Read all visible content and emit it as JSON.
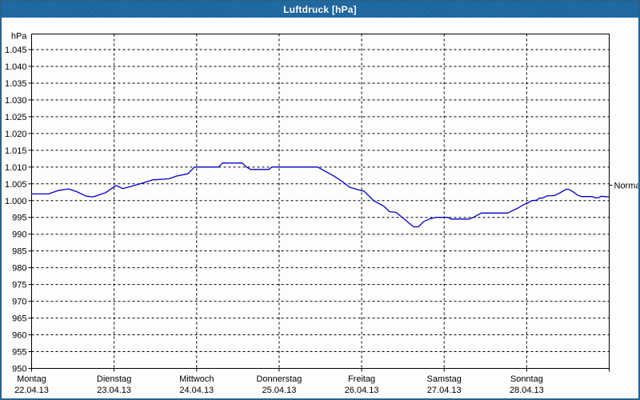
{
  "window": {
    "title": "Luftdruck [hPa]"
  },
  "colors": {
    "titlebar_bg": "#1c69a3",
    "titlebar_text": "#ffffff",
    "frame_border": "#26638b",
    "chart_bg": "#fdfdfb",
    "grid": "#000000",
    "line": "#0000cc",
    "text": "#000000"
  },
  "chart_data": {
    "type": "line",
    "title": "Luftdruck [hPa]",
    "ylabel": "hPa",
    "ylim": [
      950,
      1049.7
    ],
    "ytick_min": 950,
    "ytick_max": 1045,
    "ytick_step": 5,
    "ytick_labels_top_to_bottom": [
      "1.045",
      "1.040",
      "1.035",
      "1.030",
      "1.025",
      "1.020",
      "1.015",
      "1.010",
      "1.005",
      "1.000",
      "995",
      "990",
      "985",
      "980",
      "975",
      "970",
      "965",
      "960",
      "955",
      "950"
    ],
    "grid": "dashed",
    "x_unit": "hours",
    "xlim_hours": [
      0,
      168
    ],
    "hours_per_day": 24,
    "x_categories": [
      {
        "day": "Montag",
        "date": "22.04.13"
      },
      {
        "day": "Dienstag",
        "date": "23.04.13"
      },
      {
        "day": "Mittwoch",
        "date": "24.04.13"
      },
      {
        "day": "Donnerstag",
        "date": "25.04.13"
      },
      {
        "day": "Freitag",
        "date": "26.04.13"
      },
      {
        "day": "Samstag",
        "date": "27.04.13"
      },
      {
        "day": "Sonntag",
        "date": "28.04.13"
      }
    ],
    "normal_marker": {
      "label": "Normal",
      "value": 1004.6
    },
    "series": [
      {
        "name": "Luftdruck",
        "color": "#0000cc",
        "points": [
          [
            0,
            1002
          ],
          [
            4.9,
            1002
          ],
          [
            7.7,
            1003
          ],
          [
            10.7,
            1003.5
          ],
          [
            13,
            1002.7
          ],
          [
            16,
            1001.3
          ],
          [
            17.9,
            1001.1
          ],
          [
            21.6,
            1002.4
          ],
          [
            23.5,
            1003.8
          ],
          [
            24.6,
            1004.5
          ],
          [
            26.5,
            1003.6
          ],
          [
            28.8,
            1004.2
          ],
          [
            31.6,
            1005
          ],
          [
            35.3,
            1006.2
          ],
          [
            40,
            1006.5
          ],
          [
            42.1,
            1007.3
          ],
          [
            45.5,
            1008
          ],
          [
            47.4,
            1010
          ],
          [
            54.4,
            1010
          ],
          [
            55.5,
            1011.2
          ],
          [
            61.3,
            1011.2
          ],
          [
            62.5,
            1010
          ],
          [
            63.7,
            1009.3
          ],
          [
            69,
            1009.3
          ],
          [
            69.9,
            1010
          ],
          [
            83.2,
            1010
          ],
          [
            85.5,
            1008.7
          ],
          [
            87.8,
            1007.4
          ],
          [
            90.2,
            1005.8
          ],
          [
            92.5,
            1004
          ],
          [
            95,
            1003.2
          ],
          [
            96.7,
            1002.8
          ],
          [
            99.5,
            1000
          ],
          [
            102.5,
            998.3
          ],
          [
            104.1,
            996.7
          ],
          [
            106,
            996.5
          ],
          [
            107.8,
            995
          ],
          [
            109.9,
            993.2
          ],
          [
            111.1,
            992.2
          ],
          [
            112.5,
            992.2
          ],
          [
            114.1,
            993.8
          ],
          [
            115.7,
            994.5
          ],
          [
            117.6,
            995
          ],
          [
            121.1,
            995
          ],
          [
            122,
            994.5
          ],
          [
            127.3,
            994.5
          ],
          [
            128.5,
            995
          ],
          [
            130.8,
            996.3
          ],
          [
            138.5,
            996.3
          ],
          [
            139.9,
            997
          ],
          [
            141.5,
            997.8
          ],
          [
            143.1,
            998.8
          ],
          [
            144.3,
            999.3
          ],
          [
            145.5,
            1000
          ],
          [
            146.9,
            1000.1
          ],
          [
            147.6,
            1000.7
          ],
          [
            148.7,
            1000.8
          ],
          [
            149.9,
            1001.4
          ],
          [
            152,
            1001.5
          ],
          [
            153.1,
            1002
          ],
          [
            154.5,
            1002.8
          ],
          [
            155.5,
            1003.4
          ],
          [
            156.4,
            1003.3
          ],
          [
            157.8,
            1002.4
          ],
          [
            158.9,
            1001.6
          ],
          [
            159.9,
            1001.2
          ],
          [
            163.1,
            1001.2
          ],
          [
            164.1,
            1000.8
          ],
          [
            165,
            1000.9
          ],
          [
            165.7,
            1001.3
          ],
          [
            166.8,
            1001.2
          ],
          [
            167.8,
            1001.1
          ]
        ]
      }
    ]
  }
}
